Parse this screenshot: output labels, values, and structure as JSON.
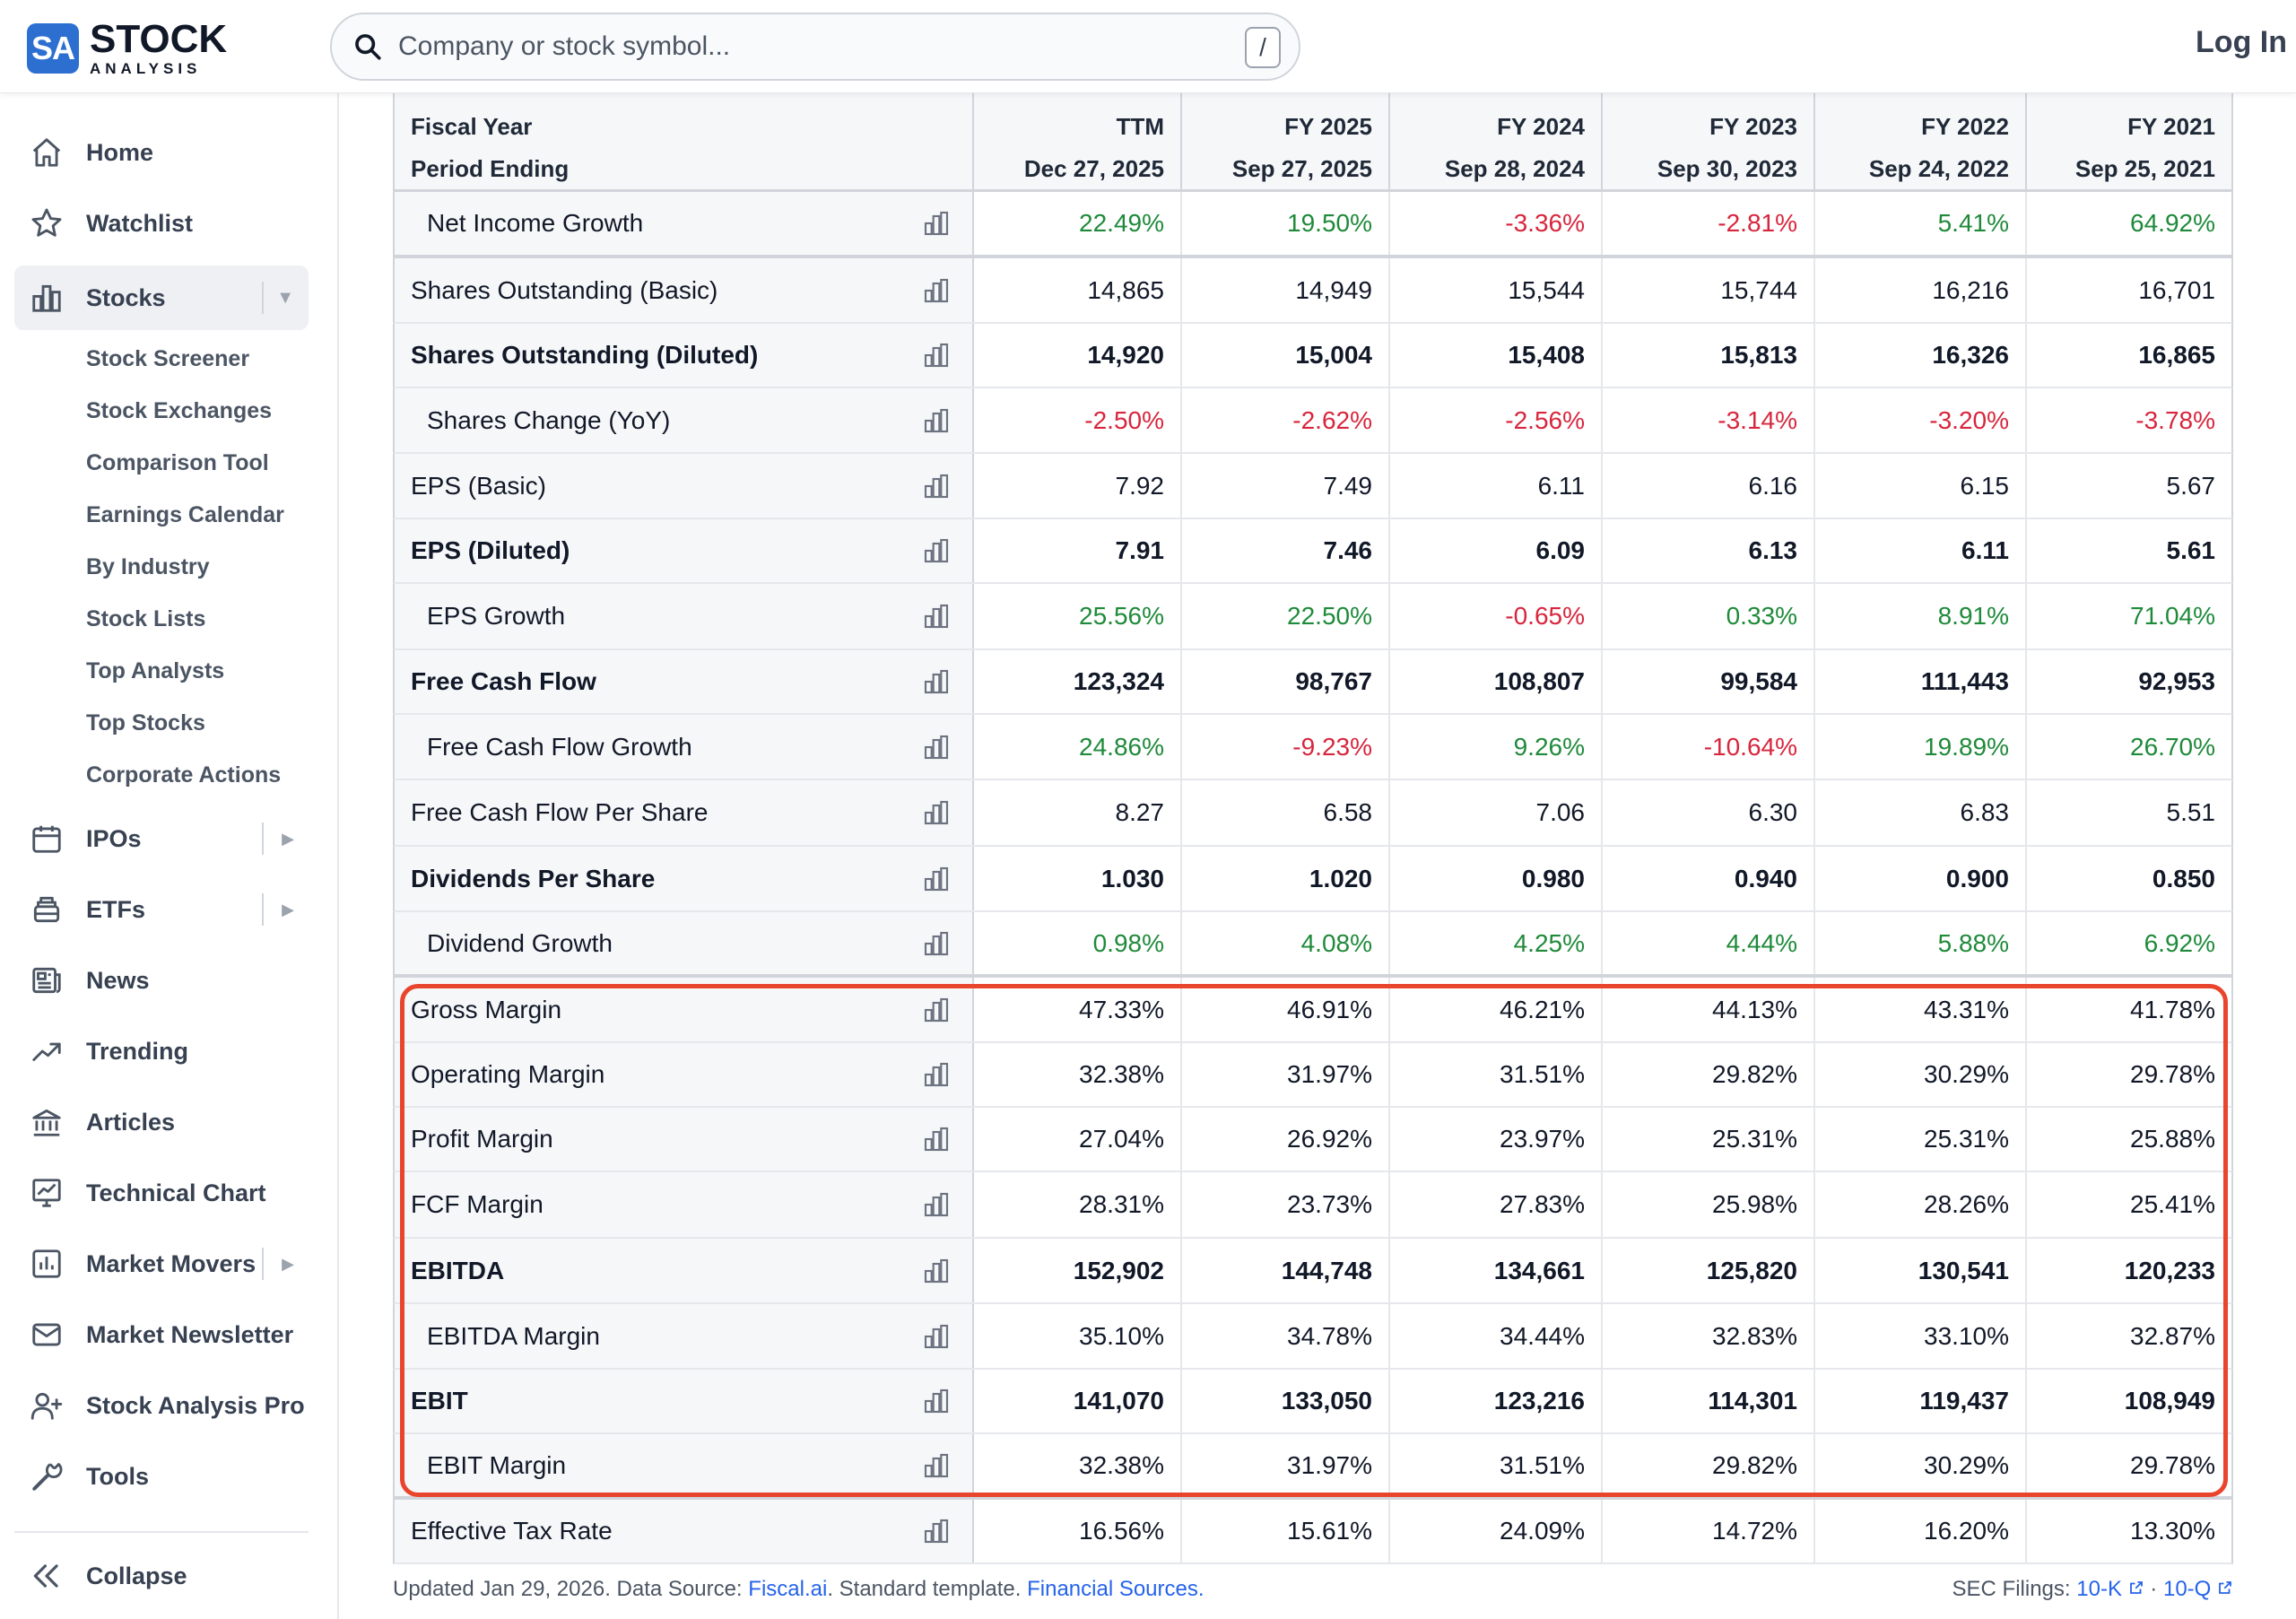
{
  "header": {
    "logo_badge": "SA",
    "logo_line1": "STOCK",
    "logo_line2": "ANALYSIS",
    "search_placeholder": "Company or stock symbol...",
    "search_shortcut": "/",
    "login_label": "Log In"
  },
  "sidebar": {
    "items": [
      {
        "label": "Home",
        "icon": "home-icon"
      },
      {
        "label": "Watchlist",
        "icon": "star-icon"
      },
      {
        "label": "Stocks",
        "icon": "bar-chart-icon"
      },
      {
        "label": "IPOs",
        "icon": "calendar-icon"
      },
      {
        "label": "ETFs",
        "icon": "stack-icon"
      },
      {
        "label": "News",
        "icon": "newspaper-icon"
      },
      {
        "label": "Trending",
        "icon": "trending-icon"
      },
      {
        "label": "Articles",
        "icon": "bank-icon"
      },
      {
        "label": "Technical Chart",
        "icon": "chart-line-icon"
      },
      {
        "label": "Market Movers",
        "icon": "chart-box-icon"
      },
      {
        "label": "Market Newsletter",
        "icon": "mail-icon"
      },
      {
        "label": "Stock Analysis Pro",
        "icon": "user-plus-icon"
      },
      {
        "label": "Tools",
        "icon": "wrench-icon"
      }
    ],
    "stocks_subitems": [
      "Stock Screener",
      "Stock Exchanges",
      "Comparison Tool",
      "Earnings Calendar",
      "By Industry",
      "Stock Lists",
      "Top Analysts",
      "Top Stocks",
      "Corporate Actions"
    ],
    "collapse_label": "Collapse"
  },
  "table": {
    "header_label_top": "Fiscal Year",
    "header_label_bottom": "Period Ending",
    "columns": [
      {
        "top": "TTM",
        "bottom": "Dec 27, 2025"
      },
      {
        "top": "FY 2025",
        "bottom": "Sep 27, 2025"
      },
      {
        "top": "FY 2024",
        "bottom": "Sep 28, 2024"
      },
      {
        "top": "FY 2023",
        "bottom": "Sep 30, 2023"
      },
      {
        "top": "FY 2022",
        "bottom": "Sep 24, 2022"
      },
      {
        "top": "FY 2021",
        "bottom": "Sep 25, 2021"
      }
    ],
    "rows": [
      {
        "label": "Net Income Growth",
        "values": [
          "22.49%",
          "19.50%",
          "-3.36%",
          "-2.81%",
          "5.41%",
          "64.92%"
        ]
      },
      {
        "label": "Shares Outstanding (Basic)",
        "values": [
          "14,865",
          "14,949",
          "15,544",
          "15,744",
          "16,216",
          "16,701"
        ]
      },
      {
        "label": "Shares Outstanding (Diluted)",
        "values": [
          "14,920",
          "15,004",
          "15,408",
          "15,813",
          "16,326",
          "16,865"
        ]
      },
      {
        "label": "Shares Change (YoY)",
        "values": [
          "-2.50%",
          "-2.62%",
          "-2.56%",
          "-3.14%",
          "-3.20%",
          "-3.78%"
        ]
      },
      {
        "label": "EPS (Basic)",
        "values": [
          "7.92",
          "7.49",
          "6.11",
          "6.16",
          "6.15",
          "5.67"
        ]
      },
      {
        "label": "EPS (Diluted)",
        "values": [
          "7.91",
          "7.46",
          "6.09",
          "6.13",
          "6.11",
          "5.61"
        ]
      },
      {
        "label": "EPS Growth",
        "values": [
          "25.56%",
          "22.50%",
          "-0.65%",
          "0.33%",
          "8.91%",
          "71.04%"
        ]
      },
      {
        "label": "Free Cash Flow",
        "values": [
          "123,324",
          "98,767",
          "108,807",
          "99,584",
          "111,443",
          "92,953"
        ]
      },
      {
        "label": "Free Cash Flow Growth",
        "values": [
          "24.86%",
          "-9.23%",
          "9.26%",
          "-10.64%",
          "19.89%",
          "26.70%"
        ]
      },
      {
        "label": "Free Cash Flow Per Share",
        "values": [
          "8.27",
          "6.58",
          "7.06",
          "6.30",
          "6.83",
          "5.51"
        ]
      },
      {
        "label": "Dividends Per Share",
        "values": [
          "1.030",
          "1.020",
          "0.980",
          "0.940",
          "0.900",
          "0.850"
        ]
      },
      {
        "label": "Dividend Growth",
        "values": [
          "0.98%",
          "4.08%",
          "4.25%",
          "4.44%",
          "5.88%",
          "6.92%"
        ]
      },
      {
        "label": "Gross Margin",
        "values": [
          "47.33%",
          "46.91%",
          "46.21%",
          "44.13%",
          "43.31%",
          "41.78%"
        ]
      },
      {
        "label": "Operating Margin",
        "values": [
          "32.38%",
          "31.97%",
          "31.51%",
          "29.82%",
          "30.29%",
          "29.78%"
        ]
      },
      {
        "label": "Profit Margin",
        "values": [
          "27.04%",
          "26.92%",
          "23.97%",
          "25.31%",
          "25.31%",
          "25.88%"
        ]
      },
      {
        "label": "FCF Margin",
        "values": [
          "28.31%",
          "23.73%",
          "27.83%",
          "25.98%",
          "28.26%",
          "25.41%"
        ]
      },
      {
        "label": "EBITDA",
        "values": [
          "152,902",
          "144,748",
          "134,661",
          "125,820",
          "130,541",
          "120,233"
        ]
      },
      {
        "label": "EBITDA Margin",
        "values": [
          "35.10%",
          "34.78%",
          "34.44%",
          "32.83%",
          "33.10%",
          "32.87%"
        ]
      },
      {
        "label": "EBIT",
        "values": [
          "141,070",
          "133,050",
          "123,216",
          "114,301",
          "119,437",
          "108,949"
        ]
      },
      {
        "label": "EBIT Margin",
        "values": [
          "32.38%",
          "31.97%",
          "31.51%",
          "29.82%",
          "30.29%",
          "29.78%"
        ]
      },
      {
        "label": "Effective Tax Rate",
        "values": [
          "16.56%",
          "15.61%",
          "24.09%",
          "14.72%",
          "16.20%",
          "13.30%"
        ]
      }
    ]
  },
  "footer": {
    "updated_text": "Updated Jan 29, 2026. Data Source: ",
    "source_link": "Fiscal.ai",
    "template_text": ". Standard template. ",
    "sources_link": "Financial Sources.",
    "sec_label": "SEC Filings:",
    "sec_10k": "10-K",
    "sec_sep": "·",
    "sec_10q": "10-Q"
  },
  "colors": {
    "brand": "#2c6fd1",
    "positive": "#1f8a3a",
    "negative": "#d7263d",
    "highlight": "#e8452c",
    "link": "#2563eb"
  }
}
